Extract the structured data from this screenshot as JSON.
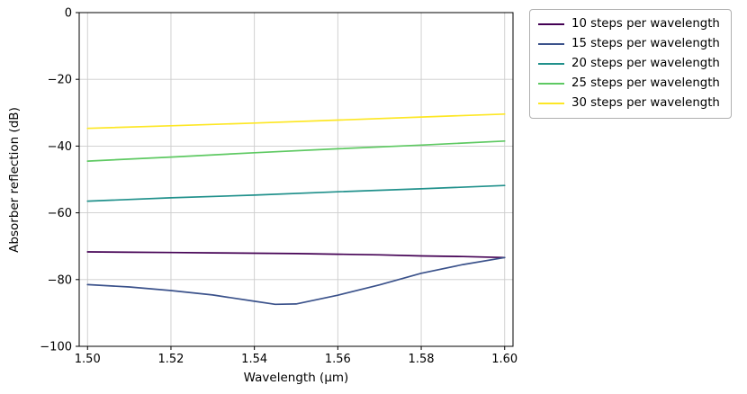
{
  "figure": {
    "background": "#ffffff"
  },
  "chart_data": {
    "type": "line",
    "title": "",
    "xlabel": "Wavelength (μm)",
    "ylabel": "Absorber reflection (dB)",
    "xlim": [
      1.498,
      1.602
    ],
    "ylim": [
      -100,
      0
    ],
    "xticks": [
      1.5,
      1.52,
      1.54,
      1.56,
      1.58,
      1.6
    ],
    "xtick_labels": [
      "1.50",
      "1.52",
      "1.54",
      "1.56",
      "1.58",
      "1.60"
    ],
    "yticks": [
      0,
      -20,
      -40,
      -60,
      -80,
      -100
    ],
    "ytick_labels": [
      "0",
      "−20",
      "−40",
      "−60",
      "−80",
      "−100"
    ],
    "grid": true,
    "grid_color": "#cccccc",
    "axis_color": "#000000",
    "legend": {
      "position": "outside-right"
    },
    "series": [
      {
        "name": "10 steps per wavelength",
        "color": "#440154",
        "x": [
          1.5,
          1.51,
          1.52,
          1.53,
          1.54,
          1.55,
          1.56,
          1.57,
          1.58,
          1.59,
          1.6
        ],
        "y": [
          -71.7,
          -71.8,
          -71.9,
          -72.0,
          -72.1,
          -72.2,
          -72.4,
          -72.6,
          -72.9,
          -73.1,
          -73.4
        ]
      },
      {
        "name": "15 steps per wavelength",
        "color": "#3b528b",
        "x": [
          1.5,
          1.51,
          1.52,
          1.53,
          1.54,
          1.545,
          1.55,
          1.56,
          1.57,
          1.58,
          1.59,
          1.6
        ],
        "y": [
          -81.5,
          -82.2,
          -83.3,
          -84.6,
          -86.5,
          -87.4,
          -87.3,
          -84.7,
          -81.6,
          -78.1,
          -75.5,
          -73.4
        ]
      },
      {
        "name": "20 steps per wavelength",
        "color": "#21918c",
        "x": [
          1.5,
          1.52,
          1.54,
          1.56,
          1.58,
          1.6
        ],
        "y": [
          -56.5,
          -55.5,
          -54.7,
          -53.7,
          -52.8,
          -51.8
        ]
      },
      {
        "name": "25 steps per wavelength",
        "color": "#5ec962",
        "x": [
          1.5,
          1.52,
          1.54,
          1.56,
          1.58,
          1.6
        ],
        "y": [
          -44.5,
          -43.3,
          -42.0,
          -40.8,
          -39.7,
          -38.5
        ]
      },
      {
        "name": "30 steps per wavelength",
        "color": "#fde725",
        "x": [
          1.5,
          1.52,
          1.54,
          1.56,
          1.58,
          1.6
        ],
        "y": [
          -34.7,
          -33.9,
          -33.1,
          -32.2,
          -31.3,
          -30.4
        ]
      }
    ]
  }
}
